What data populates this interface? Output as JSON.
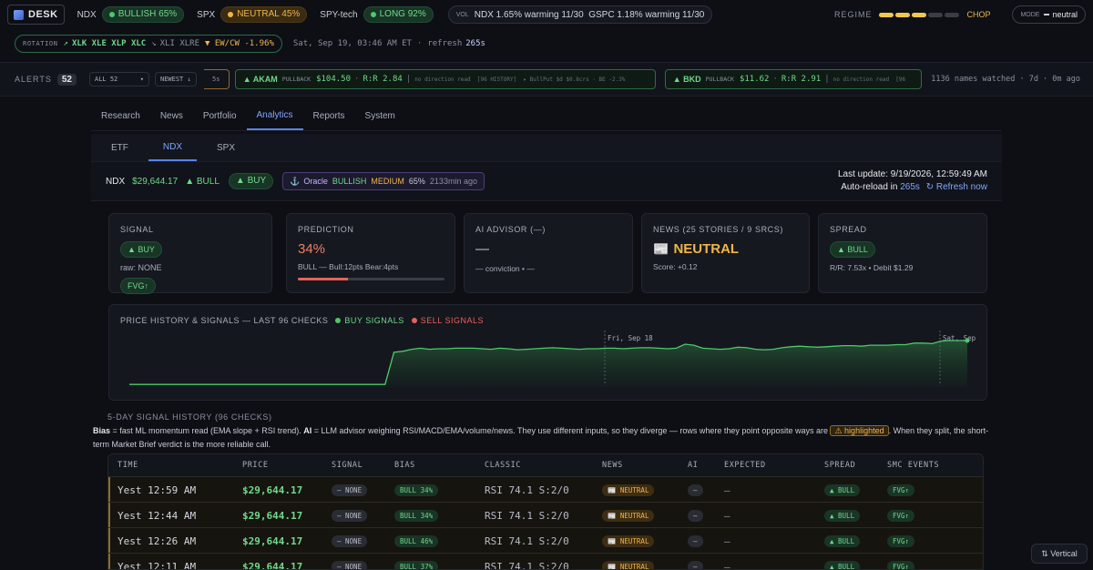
{
  "topbar": {
    "logo": "DESK",
    "items": [
      {
        "name": "NDX",
        "status": "BULLISH 65%",
        "tone": "green"
      },
      {
        "name": "SPX",
        "status": "NEUTRAL 45%",
        "tone": "orange"
      },
      {
        "name": "SPY-tech",
        "status": "LONG 92%",
        "tone": "green"
      }
    ],
    "vol_label": "VOL",
    "vol_text": "NDX 1.65% warming 11/30  GSPC 1.18% warming 11/30",
    "regime_label": "REGIME",
    "regime_value": "CHOP",
    "mode_label": "MODE",
    "mode_value": "neutral"
  },
  "rotation": {
    "label": "ROTATION",
    "in_arrow": "↗",
    "in_tickers": "XLK XLE XLP XLC",
    "out_arrow": "↘",
    "out_tickers": "XLI XLRE",
    "ewcw": "▼ EW/CW -1.96%",
    "datetime": "Sat, Sep 19, 03:46 AM ET",
    "refresh_label": "refresh",
    "refresh_value": "265s"
  },
  "alerts": {
    "label": "ALERTS",
    "count": "52",
    "filter": "ALL 52",
    "sort": "NEWEST ↓",
    "partial": "5s",
    "cards": [
      {
        "ticker": "▲ AKAM",
        "kind": "PULLBACK",
        "price": "$104.50",
        "rr": "R:R 2.84",
        "tail": "no direction read  [96 HISTORY]  ▸ BullPut $d $0.8crs · BE -2.3%"
      },
      {
        "ticker": "▲ BKD",
        "kind": "PULLBACK",
        "price": "$11.62",
        "rr": "R:R 2.91",
        "tail": "no direction read  [96"
      }
    ],
    "watched": "1136 names watched · 7d · 0m ago"
  },
  "nav": {
    "tabs": [
      "Research",
      "News",
      "Portfolio",
      "Analytics",
      "Reports",
      "System"
    ],
    "active": "Analytics"
  },
  "subnav": {
    "tabs": [
      "ETF",
      "NDX",
      "SPX"
    ],
    "active": "NDX"
  },
  "info": {
    "symbol": "NDX",
    "price": "$29,644.17",
    "bull": "▲ BULL",
    "buy": "▲ BUY",
    "oracle_icon": "⚓",
    "oracle_label": "Oracle",
    "oracle_dir": "BULLISH",
    "oracle_strength": "MEDIUM",
    "oracle_pct": "65%",
    "oracle_age": "2133min ago",
    "last_update": "Last update: 9/19/2026, 12:59:49 AM",
    "auto_reload": "Auto-reload in",
    "auto_reload_value": "265s",
    "refresh_now": "↻ Refresh now"
  },
  "cards": {
    "signal": {
      "title": "SIGNAL",
      "badge": "▲ BUY",
      "raw": "raw: NONE",
      "fvg": "FVG↑"
    },
    "prediction": {
      "title": "PREDICTION",
      "value": "34%",
      "detail": "BULL — Bull:12pts Bear:4pts",
      "progress": 0.34
    },
    "ai": {
      "title": "AI ADVISOR (—)",
      "value": "—",
      "detail": "— conviction • —"
    },
    "news": {
      "title": "NEWS (25 STORIES / 9 SRCS)",
      "icon": "📰",
      "value": "NEUTRAL",
      "score": "Score: +0.12"
    },
    "spread": {
      "title": "SPREAD",
      "badge": "▲ BULL",
      "detail": "R/R: 7.53x • Debit $1.29"
    }
  },
  "chart_data": {
    "type": "area",
    "title": "PRICE HISTORY & SIGNALS — LAST 96 CHECKS",
    "legend": [
      {
        "name": "BUY SIGNALS",
        "color": "#4fc76a"
      },
      {
        "name": "SELL SIGNALS",
        "color": "#e8615b"
      }
    ],
    "annotations": [
      "Fri, Sep 18",
      "Sat, Sep"
    ],
    "grid": false,
    "values": [
      0.05,
      0.05,
      0.05,
      0.05,
      0.05,
      0.05,
      0.05,
      0.05,
      0.05,
      0.05,
      0.05,
      0.05,
      0.05,
      0.05,
      0.05,
      0.05,
      0.05,
      0.05,
      0.05,
      0.05,
      0.05,
      0.05,
      0.05,
      0.05,
      0.05,
      0.05,
      0.05,
      0.05,
      0.05,
      0.05,
      0.68,
      0.7,
      0.74,
      0.76,
      0.74,
      0.75,
      0.75,
      0.76,
      0.76,
      0.76,
      0.75,
      0.74,
      0.76,
      0.75,
      0.73,
      0.74,
      0.75,
      0.76,
      0.77,
      0.76,
      0.75,
      0.74,
      0.75,
      0.75,
      0.76,
      0.76,
      0.75,
      0.76,
      0.77,
      0.77,
      0.76,
      0.75,
      0.76,
      0.84,
      0.82,
      0.76,
      0.75,
      0.74,
      0.75,
      0.78,
      0.77,
      0.74,
      0.73,
      0.74,
      0.77,
      0.79,
      0.8,
      0.79,
      0.78,
      0.79,
      0.8,
      0.81,
      0.81,
      0.8,
      0.82,
      0.82,
      0.82,
      0.83,
      0.83,
      0.86,
      0.86,
      0.85,
      0.9,
      0.91,
      0.91,
      0.91
    ],
    "buy_marker_index": 95
  },
  "history": {
    "title": "5-DAY SIGNAL HISTORY (96 CHECKS)",
    "desc_bias_label": "Bias",
    "desc_bias": " = fast ML momentum read (EMA slope + RSI trend). ",
    "desc_ai_label": "AI",
    "desc_ai": " = LLM advisor weighing RSI/MACD/EMA/volume/news. They use different inputs, so they diverge — rows where they point opposite ways are ",
    "desc_highlight": "⚠ highlighted",
    "desc_tail": ". When they split, the short-term Market Brief verdict is the more reliable call.",
    "columns": [
      "TIME",
      "PRICE",
      "SIGNAL",
      "BIAS",
      "CLASSIC",
      "NEWS",
      "AI",
      "EXPECTED",
      "SPREAD",
      "SMC EVENTS"
    ],
    "rows": [
      {
        "time": "Yest 12:59 AM",
        "price": "$29,644.17",
        "signal": "— NONE",
        "bias": "BULL 34%",
        "classic": "RSI 74.1 S:2/0",
        "news": "📰 NEUTRAL",
        "ai": "—",
        "expected": "—",
        "spread": "▲ BULL",
        "smc": "FVG↑"
      },
      {
        "time": "Yest 12:44 AM",
        "price": "$29,644.17",
        "signal": "— NONE",
        "bias": "BULL 34%",
        "classic": "RSI 74.1 S:2/0",
        "news": "📰 NEUTRAL",
        "ai": "—",
        "expected": "—",
        "spread": "▲ BULL",
        "smc": "FVG↑"
      },
      {
        "time": "Yest 12:26 AM",
        "price": "$29,644.17",
        "signal": "— NONE",
        "bias": "BULL 46%",
        "classic": "RSI 74.1 S:2/0",
        "news": "📰 NEUTRAL",
        "ai": "—",
        "expected": "—",
        "spread": "▲ BULL",
        "smc": "FVG↑"
      },
      {
        "time": "Yest 12:11 AM",
        "price": "$29,644.17",
        "signal": "— NONE",
        "bias": "BULL 37%",
        "classic": "RSI 74.1 S:2/0",
        "news": "📰 NEUTRAL",
        "ai": "—",
        "expected": "—",
        "spread": "▲ BULL",
        "smc": "FVG↑"
      }
    ]
  },
  "vertical_button": "⇅ Vertical",
  "colors": {
    "accent": "#5a83e8",
    "green": "#4fc76a",
    "orange": "#f0b54a",
    "red": "#e8615b"
  }
}
